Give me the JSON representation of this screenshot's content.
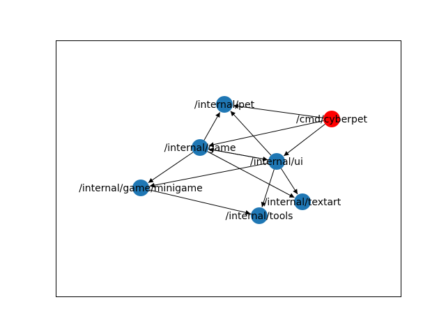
{
  "graph": {
    "default_node_color": "#1f77b4",
    "highlight_color": "#ff0000",
    "nodes": [
      {
        "id": "pet",
        "label": "/internal/pet",
        "color": "#1f77b4"
      },
      {
        "id": "cyberpet",
        "label": "/cmd/cyberpet",
        "color": "#ff0000"
      },
      {
        "id": "game",
        "label": "/internal/game",
        "color": "#1f77b4"
      },
      {
        "id": "ui",
        "label": "/internal/ui",
        "color": "#1f77b4"
      },
      {
        "id": "minigame",
        "label": "/internal/game/minigame",
        "color": "#1f77b4"
      },
      {
        "id": "textart",
        "label": "/internal/textart",
        "color": "#1f77b4"
      },
      {
        "id": "tools",
        "label": "/internal/tools",
        "color": "#1f77b4"
      }
    ],
    "edges": [
      {
        "from": "cyberpet",
        "to": "pet"
      },
      {
        "from": "cyberpet",
        "to": "game"
      },
      {
        "from": "cyberpet",
        "to": "ui"
      },
      {
        "from": "game",
        "to": "pet"
      },
      {
        "from": "game",
        "to": "ui"
      },
      {
        "from": "game",
        "to": "minigame"
      },
      {
        "from": "game",
        "to": "textart"
      },
      {
        "from": "ui",
        "to": "pet"
      },
      {
        "from": "ui",
        "to": "game"
      },
      {
        "from": "ui",
        "to": "minigame"
      },
      {
        "from": "ui",
        "to": "textart"
      },
      {
        "from": "ui",
        "to": "tools"
      },
      {
        "from": "minigame",
        "to": "tools"
      }
    ]
  }
}
